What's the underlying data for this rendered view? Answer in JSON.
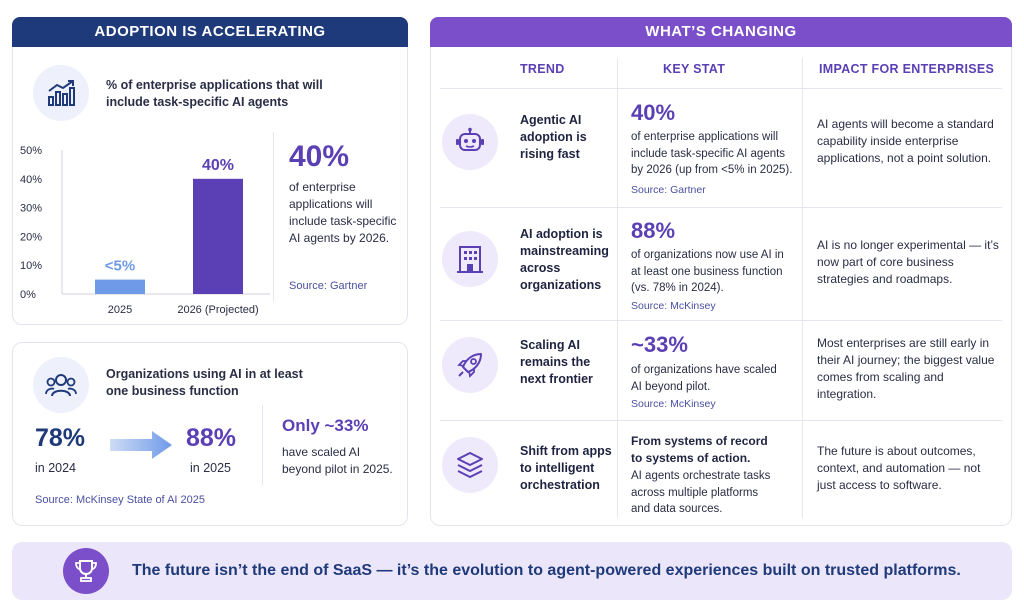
{
  "left_header": "ADOPTION IS ACCELERATING",
  "right_header": "WHAT’S CHANGING",
  "chart_card": {
    "heading": "% of enterprise applications that will include task-specific AI agents",
    "big_stat": "40%",
    "desc": "of enterprise applications will include task-specific AI agents by 2026.",
    "source": "Source: Gartner"
  },
  "chart_data": {
    "type": "bar",
    "categories": [
      "2025",
      "2026 (Projected)"
    ],
    "values": [
      5,
      40
    ],
    "data_labels": [
      "<5%",
      "40%"
    ],
    "yticks": [
      "50%",
      "40%",
      "30%",
      "20%",
      "10%",
      "0%"
    ],
    "ylim": [
      0,
      50
    ],
    "colors": [
      "#6f9ae8",
      "#5b3fb5"
    ],
    "title": "",
    "xlabel": "",
    "ylabel": ""
  },
  "orgs_card": {
    "heading": "Organizations using AI in at least one business function",
    "from_value": "78%",
    "from_label": "in 2024",
    "to_value": "88%",
    "to_label": "in 2025",
    "side_stat": "Only ~33%",
    "side_desc": "have scaled AI beyond pilot in 2025.",
    "source": "Source: McKinsey State of AI 2025"
  },
  "table": {
    "columns": [
      "TREND",
      "KEY STAT",
      "IMPACT FOR ENTERPRISES"
    ],
    "rows": [
      {
        "icon": "robot-icon",
        "trend": "Agentic AI adoption is rising fast",
        "stat": "40%",
        "stat_text": "of enterprise applications will include task-specific AI agents by 2026 (up from <5% in 2025).",
        "source": "Source: Gartner",
        "impact": "AI agents will become a standard capability inside enterprise applications, not a point solution."
      },
      {
        "icon": "building-icon",
        "trend": "AI adoption is mainstreaming across organizations",
        "stat": "88%",
        "stat_text": "of organizations now use AI in at least one business function (vs. 78% in 2024).",
        "source": "Source: McKinsey",
        "impact": "AI is no longer experimental — it’s now part of core business strategies and roadmaps."
      },
      {
        "icon": "rocket-icon",
        "trend": "Scaling AI remains the next frontier",
        "stat": "~33%",
        "stat_text": "of organizations have scaled AI beyond pilot.",
        "source": "Source: McKinsey",
        "impact": "Most enterprises are still early in their AI journey; the biggest value comes from scaling and integration."
      },
      {
        "icon": "layers-icon",
        "trend": "Shift from apps to intelligent orchestration",
        "stat_heading": "From systems of record to systems of action.",
        "stat_text": "AI agents orchestrate tasks across multiple platforms and data sources.",
        "impact": "The future is about outcomes, context, and automation — not just access to software."
      }
    ]
  },
  "footer": {
    "text": "The future isn’t the end of SaaS — it’s the evolution to agent-powered experiences built on trusted platforms.",
    "icon": "trophy-icon"
  },
  "colors": {
    "navy": "#1f3a7a",
    "purple": "#7b4fc9",
    "accent_purple": "#5b3fb5",
    "light_blue_bar": "#6f9ae8",
    "footer_bg": "#ebe6fa"
  }
}
